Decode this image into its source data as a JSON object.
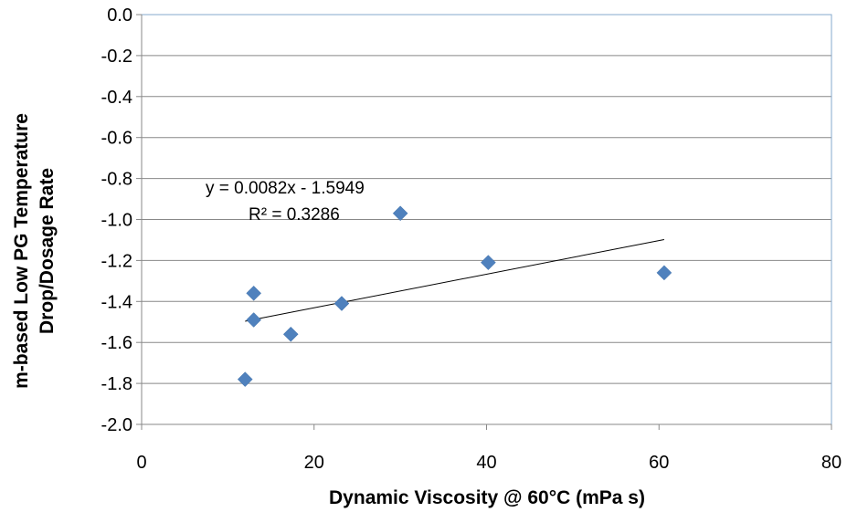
{
  "chart_data": {
    "type": "scatter",
    "xlabel": "Dynamic Viscosity @ 60°C (mPa s)",
    "ylabel_lines": [
      "m-based Low PG Temperature",
      "Drop/Dosage Rate"
    ],
    "xlim": [
      0,
      80
    ],
    "ylim": [
      -2.0,
      0.0
    ],
    "x_ticks": [
      0,
      20,
      40,
      60,
      80
    ],
    "y_ticks": [
      0.0,
      -0.2,
      -0.4,
      -0.6,
      -0.8,
      -1.0,
      -1.2,
      -1.4,
      -1.6,
      -1.8,
      -2.0
    ],
    "grid": "horizontal",
    "marker_color": "#4F81BD",
    "series": [
      {
        "points": [
          {
            "x": 12.0,
            "y": -1.78
          },
          {
            "x": 13.0,
            "y": -1.36
          },
          {
            "x": 13.0,
            "y": -1.49
          },
          {
            "x": 17.3,
            "y": -1.56
          },
          {
            "x": 23.2,
            "y": -1.41
          },
          {
            "x": 30.0,
            "y": -0.97
          },
          {
            "x": 40.2,
            "y": -1.21
          },
          {
            "x": 60.6,
            "y": -1.26
          }
        ]
      }
    ],
    "trendline": {
      "slope": 0.0082,
      "intercept": -1.5949,
      "x_range": [
        12.0,
        60.6
      ],
      "equation_label": "y = 0.0082x - 1.5949",
      "r2_label": "R² = 0.3286"
    }
  }
}
